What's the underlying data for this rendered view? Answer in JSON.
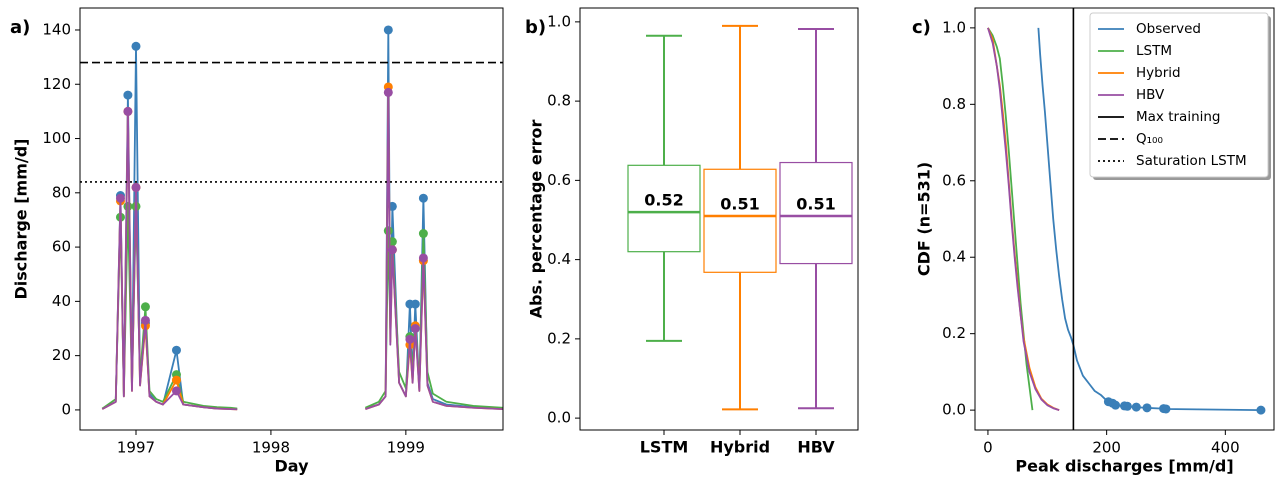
{
  "chart_data": [
    {
      "type": "line",
      "panel_label": "a)",
      "ylabel": "Discharge [mm/d]",
      "xlabel": "Day",
      "xlim": [
        1996.585,
        1999.72
      ],
      "xticks": [
        1997,
        1998,
        1999
      ],
      "ylim": [
        -7.4,
        148.1
      ],
      "yticks": [
        0,
        20,
        40,
        60,
        80,
        100,
        120,
        140
      ],
      "x": [
        1996.75,
        1996.85,
        1996.885,
        1996.91,
        1996.94,
        1996.97,
        1997.0,
        1997.03,
        1997.07,
        1997.1,
        1997.15,
        1997.2,
        1997.3,
        1997.35,
        1997.5,
        1997.6,
        1997.7,
        1997.75,
        1998.2,
        1998.7,
        1998.8,
        1998.85,
        1998.87,
        1998.885,
        1998.9,
        1998.95,
        1999.0,
        1999.03,
        1999.05,
        1999.07,
        1999.1,
        1999.13,
        1999.16,
        1999.2,
        1999.3,
        1999.5,
        1999.72
      ],
      "peak_x": [
        1996.885,
        1996.94,
        1997.0,
        1997.07,
        1997.3,
        1998.87,
        1998.9,
        1999.03,
        1999.07,
        1999.13
      ],
      "series": [
        {
          "name": "Observed",
          "color": "#3a7fb8",
          "values": [
            0.5,
            3,
            79,
            5,
            116,
            8,
            134,
            10,
            32,
            6,
            3,
            2,
            22,
            2,
            1,
            0.5,
            0.5,
            0.3,
            null,
            0.5,
            2,
            5,
            140,
            30,
            75,
            10,
            5,
            39,
            12,
            39,
            8,
            78,
            10,
            4,
            2,
            1,
            0.5
          ],
          "peaks": [
            79,
            116,
            134,
            32,
            22,
            140,
            75,
            39,
            39,
            78
          ]
        },
        {
          "name": "LSTM",
          "color": "#4daf4a",
          "values": [
            0.5,
            4,
            71,
            6,
            75,
            9,
            75,
            12,
            38,
            7,
            4,
            3,
            13,
            3,
            1.5,
            1,
            0.8,
            0.5,
            null,
            0.8,
            3,
            7,
            66,
            30,
            62,
            14,
            8,
            27,
            15,
            30,
            10,
            65,
            14,
            6,
            3,
            1.5,
            0.8
          ],
          "peaks": [
            71,
            75,
            75,
            38,
            13,
            66,
            62,
            27,
            30,
            65
          ]
        },
        {
          "name": "Hybrid",
          "color": "#ff7f00",
          "values": [
            0.3,
            3,
            77,
            5,
            110,
            7,
            82,
            9,
            31,
            5,
            3,
            2,
            11,
            2,
            1,
            0.5,
            0.3,
            0.2,
            null,
            0.3,
            2,
            5,
            119,
            25,
            59,
            10,
            5,
            24,
            10,
            31,
            7,
            55,
            9,
            3,
            1.5,
            0.8,
            0.3
          ],
          "peaks": [
            77,
            110,
            82,
            31,
            11,
            119,
            59,
            24,
            31,
            55
          ]
        },
        {
          "name": "HBV",
          "color": "#984ea3",
          "values": [
            0.3,
            3,
            78,
            5,
            110,
            7,
            82,
            9,
            33,
            5,
            3,
            2,
            7,
            2,
            1,
            0.5,
            0.3,
            0.2,
            null,
            0.3,
            2,
            5,
            117,
            24,
            59,
            10,
            5,
            26,
            10,
            30,
            7,
            56,
            9,
            3,
            1.5,
            0.8,
            0.3
          ],
          "peaks": [
            78,
            110,
            82,
            33,
            7,
            117,
            59,
            26,
            30,
            56
          ]
        }
      ],
      "hlines": [
        {
          "name": "Q₁₀₀",
          "value": 128,
          "style": "dashed"
        },
        {
          "name": "Saturation LSTM",
          "value": 84,
          "style": "dotted"
        }
      ]
    },
    {
      "type": "box",
      "panel_label": "b)",
      "ylabel": "Abs. percentage error",
      "ylim": [
        -0.03,
        1.035
      ],
      "yticks": [
        {
          "value": 0,
          "label": "0.0"
        },
        0.2,
        0.4,
        0.6,
        0.8,
        {
          "value": 1,
          "label": "1.0"
        }
      ],
      "categories": [
        "LSTM",
        "Hybrid",
        "HBV"
      ],
      "colors": [
        "#4daf4a",
        "#ff7f00",
        "#984ea3"
      ],
      "whisker_low": [
        0.195,
        0.022,
        0.025
      ],
      "q1": [
        0.42,
        0.368,
        0.39
      ],
      "median": [
        0.52,
        0.51,
        0.51
      ],
      "q3": [
        0.638,
        0.628,
        0.645
      ],
      "whisker_high": [
        0.965,
        0.99,
        0.982
      ]
    },
    {
      "type": "line",
      "panel_label": "c)",
      "ylabel": "CDF (n=531)",
      "xlabel": "Peak discharges [mm/d]",
      "xlim": [
        -21.8,
        482
      ],
      "xticks": [
        0,
        200,
        400
      ],
      "ylim": [
        -0.052,
        1.052
      ],
      "yticks": [
        {
          "value": 0,
          "label": "0.0"
        },
        0.2,
        0.4,
        0.6,
        0.8,
        {
          "value": 1,
          "label": "1.0"
        }
      ],
      "legend": "upper right",
      "series": [
        {
          "name": "Observed",
          "color": "#3a7fb8",
          "x": [
            85,
            88,
            92,
            96,
            100,
            105,
            110,
            115,
            120,
            125,
            130,
            135,
            140,
            144,
            150,
            160,
            170,
            180,
            190,
            200,
            205,
            210,
            220,
            230,
            240,
            250,
            265,
            295,
            300,
            460
          ],
          "values": [
            1.0,
            0.93,
            0.85,
            0.78,
            0.7,
            0.6,
            0.5,
            0.42,
            0.35,
            0.29,
            0.24,
            0.21,
            0.19,
            0.17,
            0.13,
            0.09,
            0.07,
            0.05,
            0.04,
            0.025,
            0.02,
            0.015,
            0.012,
            0.01,
            0.009,
            0.008,
            0.006,
            0.004,
            0.003,
            0
          ],
          "markers": {
            "x": [
              203,
              210,
              215,
              230,
              235,
              250,
              268,
              296,
              300,
              460
            ],
            "values": [
              0.022,
              0.018,
              0.013,
              0.011,
              0.01,
              0.008,
              0.006,
              0.004,
              0.003,
              0
            ]
          }
        },
        {
          "name": "LSTM",
          "color": "#4daf4a",
          "x": [
            0,
            8,
            15,
            20,
            25,
            30,
            35,
            40,
            45,
            50,
            55,
            60,
            65,
            70,
            75
          ],
          "values": [
            1.0,
            0.98,
            0.95,
            0.92,
            0.85,
            0.77,
            0.68,
            0.58,
            0.48,
            0.38,
            0.28,
            0.2,
            0.12,
            0.06,
            0
          ]
        },
        {
          "name": "Hybrid",
          "color": "#ff7f00",
          "x": [
            0,
            8,
            15,
            20,
            25,
            30,
            35,
            40,
            45,
            50,
            55,
            60,
            70,
            80,
            90,
            100,
            110,
            120
          ],
          "values": [
            1.0,
            0.97,
            0.9,
            0.85,
            0.78,
            0.7,
            0.6,
            0.5,
            0.41,
            0.33,
            0.25,
            0.19,
            0.11,
            0.06,
            0.03,
            0.015,
            0.006,
            0
          ]
        },
        {
          "name": "HBV",
          "color": "#984ea3",
          "x": [
            0,
            8,
            15,
            20,
            25,
            30,
            35,
            40,
            45,
            50,
            55,
            60,
            70,
            80,
            90,
            100,
            110,
            120
          ],
          "values": [
            1.0,
            0.96,
            0.9,
            0.84,
            0.76,
            0.68,
            0.59,
            0.49,
            0.4,
            0.32,
            0.25,
            0.18,
            0.1,
            0.055,
            0.028,
            0.013,
            0.005,
            0
          ]
        }
      ],
      "vlines": [
        {
          "name": "Max training",
          "value": 144,
          "style": "solid"
        }
      ]
    }
  ]
}
